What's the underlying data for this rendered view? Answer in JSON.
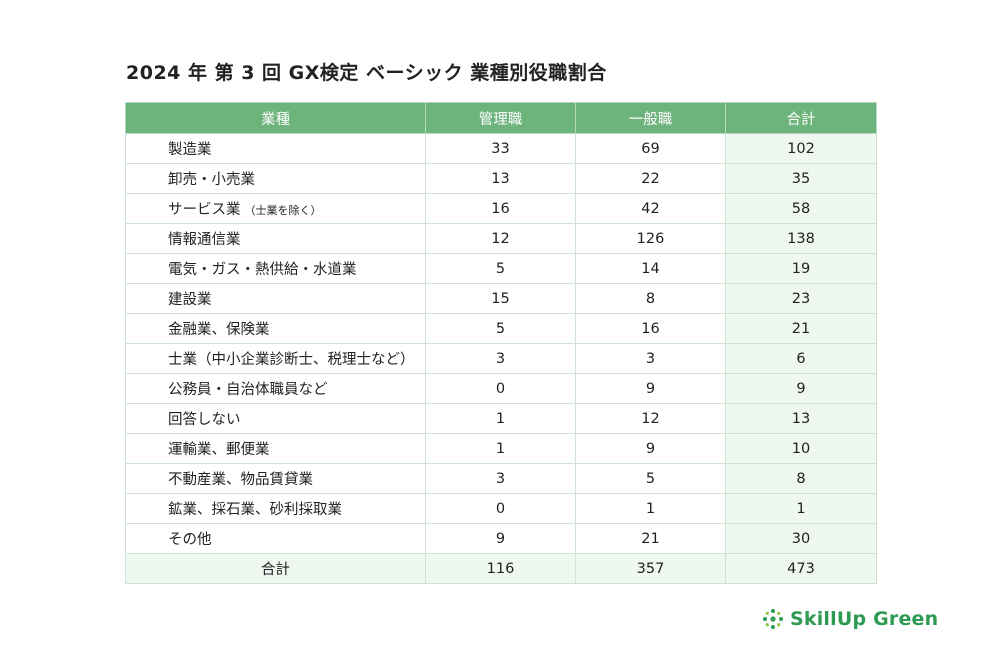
{
  "title": "2024 年 第 3 回 GX検定 ベーシック 業種別役職割合",
  "table": {
    "headers": [
      "業種",
      "管理職",
      "一般職",
      "合計"
    ],
    "rows": [
      {
        "industry": "製造業",
        "note": "",
        "manager": "33",
        "general": "69",
        "total": "102"
      },
      {
        "industry": "卸売・小売業",
        "note": "",
        "manager": "13",
        "general": "22",
        "total": "35"
      },
      {
        "industry": "サービス業",
        "note": "（士業を除く）",
        "manager": "16",
        "general": "42",
        "total": "58"
      },
      {
        "industry": "情報通信業",
        "note": "",
        "manager": "12",
        "general": "126",
        "total": "138"
      },
      {
        "industry": "電気・ガス・熱供給・水道業",
        "note": "",
        "manager": "5",
        "general": "14",
        "total": "19"
      },
      {
        "industry": "建設業",
        "note": "",
        "manager": "15",
        "general": "8",
        "total": "23"
      },
      {
        "industry": "金融業、保険業",
        "note": "",
        "manager": "5",
        "general": "16",
        "total": "21"
      },
      {
        "industry": "士業（中小企業診断士、税理士など）",
        "note": "",
        "manager": "3",
        "general": "3",
        "total": "6"
      },
      {
        "industry": "公務員・自治体職員など",
        "note": "",
        "manager": "0",
        "general": "9",
        "total": "9"
      },
      {
        "industry": "回答しない",
        "note": "",
        "manager": "1",
        "general": "12",
        "total": "13"
      },
      {
        "industry": "運輸業、郵便業",
        "note": "",
        "manager": "1",
        "general": "9",
        "total": "10"
      },
      {
        "industry": "不動産業、物品賃貸業",
        "note": "",
        "manager": "3",
        "general": "5",
        "total": "8"
      },
      {
        "industry": "鉱業、採石業、砂利採取業",
        "note": "",
        "manager": "0",
        "general": "1",
        "total": "1"
      },
      {
        "industry": "その他",
        "note": "",
        "manager": "9",
        "general": "21",
        "total": "30"
      }
    ],
    "total": {
      "label": "合計",
      "manager": "116",
      "general": "357",
      "total": "473"
    }
  },
  "logo": {
    "text": "SkillUp Green",
    "icon": "dots-burst-icon",
    "color": "#2e9a52"
  },
  "colors": {
    "header_bg": "#6db37c",
    "total_bg": "#eef7f0"
  }
}
